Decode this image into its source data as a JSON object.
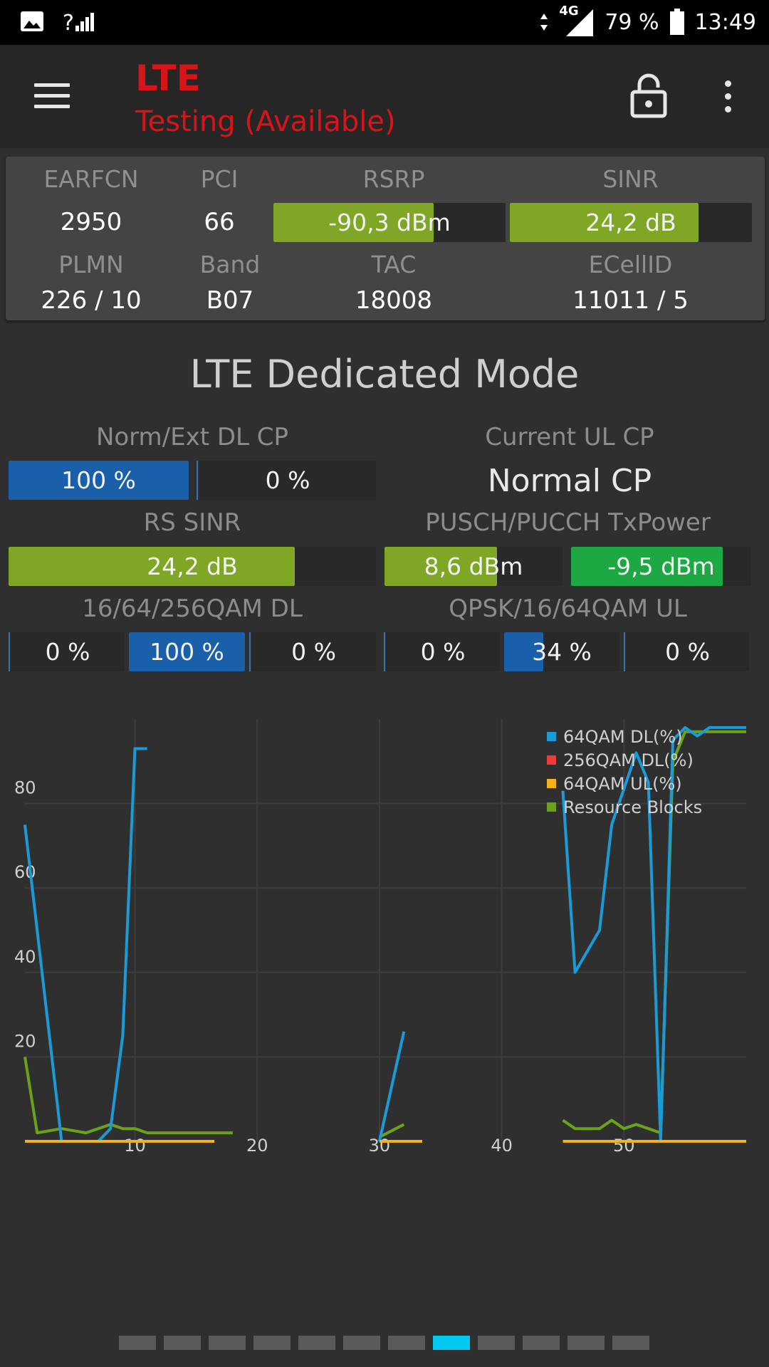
{
  "status_bar": {
    "network_type": "4G",
    "battery": "79 %",
    "time": "13:49",
    "icons": [
      "image-icon",
      "signal-unknown-icon",
      "data-arrows-icon",
      "cell-signal-icon",
      "battery-icon"
    ]
  },
  "app_bar": {
    "title": "LTE",
    "subtitle": "Testing (Available)",
    "title_color": "#d8141b"
  },
  "cell_info": {
    "earfcn_label": "EARFCN",
    "earfcn": "2950",
    "pci_label": "PCI",
    "pci": "66",
    "rsrp_label": "RSRP",
    "rsrp": "-90,3 dBm",
    "rsrp_fraction": 0.69,
    "sinr_label": "SINR",
    "sinr": "24,2 dB",
    "sinr_fraction": 0.78,
    "plmn_label": "PLMN",
    "plmn": "226 / 10",
    "band_label": "Band",
    "band": "B07",
    "tac_label": "TAC",
    "tac": "18008",
    "ecellid_label": "ECellID",
    "ecellid": "11011 / 5"
  },
  "dedicated": {
    "title": "LTE Dedicated Mode",
    "dl_cp_label": "Norm/Ext DL CP",
    "dl_cp_norm": "100 %",
    "dl_cp_ext": "0 %",
    "ul_cp_label": "Current UL CP",
    "ul_cp_value": "Normal CP",
    "rs_sinr_label": "RS SINR",
    "rs_sinr": "24,2 dB",
    "rs_sinr_fraction": 0.78,
    "txpower_label": "PUSCH/PUCCH TxPower",
    "pusch": "8,6 dBm",
    "pusch_fraction": 0.63,
    "pucch": "-9,5 dBm",
    "pucch_fraction": 0.84,
    "qam_dl_label": "16/64/256QAM DL",
    "qam_dl": [
      "0 %",
      "100 %",
      "0 %"
    ],
    "qam_dl_fraction": [
      0,
      1,
      0
    ],
    "qam_ul_label": "QPSK/16/64QAM UL",
    "qam_ul": [
      "0 %",
      "34 %",
      "0 %"
    ],
    "qam_ul_fraction": [
      0,
      0.34,
      0
    ],
    "colors": {
      "green": "#7fa624",
      "bright_green": "#1ea843",
      "blue": "#1a5faa"
    }
  },
  "chart_data": {
    "type": "line",
    "x_ticks": [
      "10",
      "20",
      "30",
      "40",
      "50"
    ],
    "y_ticks": [
      "20",
      "40",
      "60",
      "80"
    ],
    "xlim": [
      1,
      60
    ],
    "ylim": [
      0,
      100
    ],
    "grid": true,
    "legend_position": "top-right",
    "series": [
      {
        "name": "64QAM DL(%)",
        "color": "#1a9ad6",
        "segments": [
          [
            [
              1,
              75
            ],
            [
              4,
              0
            ]
          ],
          [
            [
              7,
              0
            ],
            [
              8,
              3
            ],
            [
              9,
              25
            ],
            [
              10,
              93
            ],
            [
              11,
              93
            ]
          ],
          [
            [
              30,
              0
            ],
            [
              32,
              26
            ]
          ],
          [
            [
              45,
              83
            ],
            [
              46,
              40
            ],
            [
              48,
              50
            ],
            [
              49,
              75
            ],
            [
              51,
              92
            ],
            [
              52,
              85
            ],
            [
              53,
              0
            ],
            [
              54,
              95
            ],
            [
              55,
              98
            ],
            [
              56,
              96
            ],
            [
              57,
              98
            ],
            [
              60,
              98
            ]
          ]
        ]
      },
      {
        "name": "256QAM DL(%)",
        "color": "#f03a3a",
        "segments": [
          [
            [
              45,
              0
            ],
            [
              45.5,
              0
            ]
          ]
        ]
      },
      {
        "name": "64QAM UL(%)",
        "color": "#f3b21a",
        "segments": [
          [
            [
              1,
              0
            ],
            [
              16.5,
              0
            ]
          ],
          [
            [
              30,
              0
            ],
            [
              33.5,
              0
            ]
          ],
          [
            [
              45,
              0
            ],
            [
              60,
              0
            ]
          ]
        ]
      },
      {
        "name": "Resource Blocks",
        "color": "#6aa31a",
        "segments": [
          [
            [
              1,
              20
            ],
            [
              2,
              2
            ],
            [
              4,
              3
            ],
            [
              5,
              2.5
            ],
            [
              6,
              2
            ],
            [
              7,
              3
            ],
            [
              8,
              4
            ],
            [
              9,
              3
            ],
            [
              10,
              3
            ],
            [
              11,
              2
            ],
            [
              12,
              2
            ],
            [
              18,
              2
            ]
          ],
          [
            [
              30,
              1
            ],
            [
              32,
              4
            ]
          ],
          [
            [
              45,
              5
            ],
            [
              46,
              3
            ],
            [
              48,
              3
            ],
            [
              49,
              5
            ],
            [
              50,
              3
            ],
            [
              51,
              4
            ],
            [
              52,
              3
            ],
            [
              53,
              2
            ],
            [
              54,
              90
            ],
            [
              55,
              97
            ],
            [
              60,
              97
            ]
          ]
        ]
      }
    ]
  },
  "pager": {
    "count": 12,
    "active_index": 7
  }
}
